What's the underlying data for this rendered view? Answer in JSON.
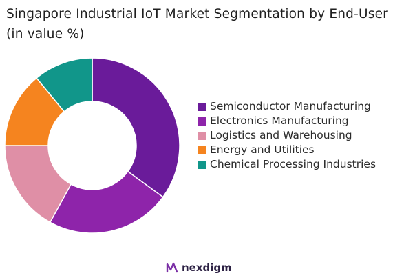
{
  "brand": {
    "name": "nexdigm"
  },
  "chart_data": {
    "type": "pie",
    "title": "Singapore Industrial IoT Market Segmentation by End-User (in value %)",
    "legend_position": "right",
    "categories": [
      "Semiconductor Manufacturing",
      "Electronics Manufacturing",
      "Logistics and Warehousing",
      "Energy and Utilities",
      "Chemical Processing Industries"
    ],
    "values": [
      35,
      23,
      17,
      14,
      11
    ],
    "colors": [
      "#6a1b9a",
      "#8e24aa",
      "#df8fa6",
      "#f5841f",
      "#11968a"
    ]
  }
}
